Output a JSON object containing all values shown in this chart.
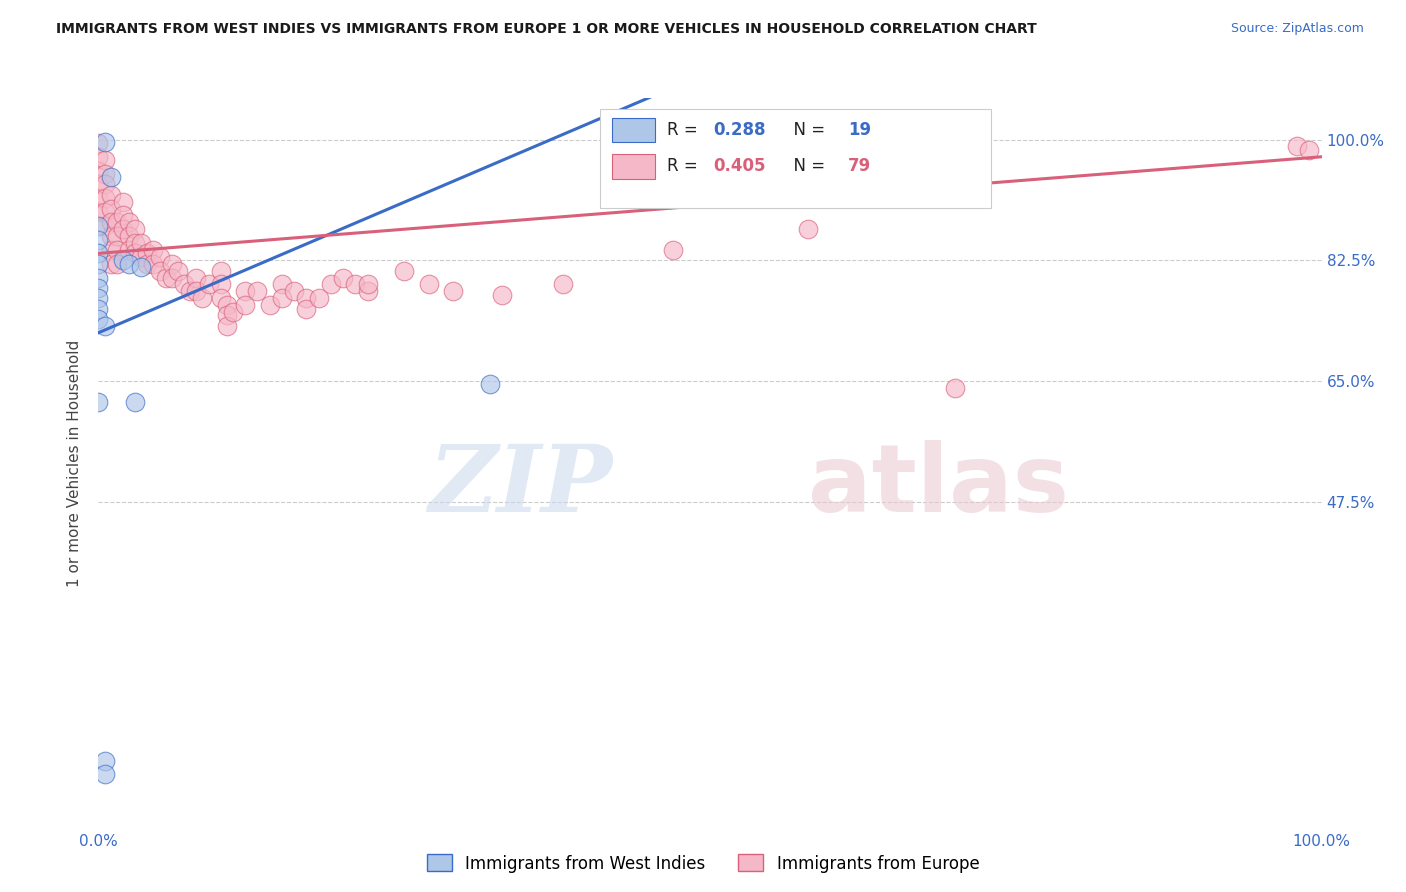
{
  "title": "IMMIGRANTS FROM WEST INDIES VS IMMIGRANTS FROM EUROPE 1 OR MORE VEHICLES IN HOUSEHOLD CORRELATION CHART",
  "source": "Source: ZipAtlas.com",
  "ylabel": "1 or more Vehicles in Household",
  "ytick_labels": [
    "100.0%",
    "82.5%",
    "65.0%",
    "47.5%"
  ],
  "ytick_values": [
    1.0,
    0.825,
    0.65,
    0.475
  ],
  "xrange": [
    0.0,
    1.0
  ],
  "yrange": [
    0.0,
    1.06
  ],
  "watermark_zip": "ZIP",
  "watermark_atlas": "atlas",
  "blue_color": "#aec6e8",
  "pink_color": "#f5b8c8",
  "blue_line_color": "#3a6bc7",
  "pink_line_color": "#d9607a",
  "blue_scatter": [
    [
      0.005,
      0.997
    ],
    [
      0.01,
      0.945
    ],
    [
      0.0,
      0.875
    ],
    [
      0.0,
      0.855
    ],
    [
      0.0,
      0.835
    ],
    [
      0.0,
      0.82
    ],
    [
      0.0,
      0.8
    ],
    [
      0.0,
      0.785
    ],
    [
      0.0,
      0.77
    ],
    [
      0.0,
      0.755
    ],
    [
      0.0,
      0.74
    ],
    [
      0.02,
      0.825
    ],
    [
      0.025,
      0.82
    ],
    [
      0.035,
      0.815
    ],
    [
      0.005,
      0.73
    ],
    [
      0.0,
      0.62
    ],
    [
      0.03,
      0.62
    ],
    [
      0.32,
      0.645
    ],
    [
      0.005,
      0.1
    ],
    [
      0.005,
      0.08
    ]
  ],
  "pink_scatter": [
    [
      0.0,
      0.995
    ],
    [
      0.0,
      0.975
    ],
    [
      0.0,
      0.955
    ],
    [
      0.0,
      0.935
    ],
    [
      0.0,
      0.915
    ],
    [
      0.0,
      0.895
    ],
    [
      0.005,
      0.97
    ],
    [
      0.005,
      0.95
    ],
    [
      0.005,
      0.935
    ],
    [
      0.005,
      0.915
    ],
    [
      0.005,
      0.895
    ],
    [
      0.005,
      0.875
    ],
    [
      0.01,
      0.92
    ],
    [
      0.01,
      0.9
    ],
    [
      0.01,
      0.88
    ],
    [
      0.01,
      0.86
    ],
    [
      0.01,
      0.84
    ],
    [
      0.01,
      0.82
    ],
    [
      0.015,
      0.88
    ],
    [
      0.015,
      0.86
    ],
    [
      0.015,
      0.84
    ],
    [
      0.015,
      0.82
    ],
    [
      0.02,
      0.91
    ],
    [
      0.02,
      0.89
    ],
    [
      0.02,
      0.87
    ],
    [
      0.025,
      0.88
    ],
    [
      0.025,
      0.86
    ],
    [
      0.025,
      0.84
    ],
    [
      0.03,
      0.87
    ],
    [
      0.03,
      0.85
    ],
    [
      0.03,
      0.835
    ],
    [
      0.035,
      0.85
    ],
    [
      0.035,
      0.83
    ],
    [
      0.04,
      0.835
    ],
    [
      0.04,
      0.82
    ],
    [
      0.045,
      0.84
    ],
    [
      0.045,
      0.82
    ],
    [
      0.05,
      0.83
    ],
    [
      0.05,
      0.81
    ],
    [
      0.055,
      0.8
    ],
    [
      0.06,
      0.82
    ],
    [
      0.06,
      0.8
    ],
    [
      0.065,
      0.81
    ],
    [
      0.07,
      0.79
    ],
    [
      0.075,
      0.78
    ],
    [
      0.08,
      0.8
    ],
    [
      0.08,
      0.78
    ],
    [
      0.085,
      0.77
    ],
    [
      0.09,
      0.79
    ],
    [
      0.1,
      0.81
    ],
    [
      0.1,
      0.79
    ],
    [
      0.1,
      0.77
    ],
    [
      0.105,
      0.76
    ],
    [
      0.105,
      0.745
    ],
    [
      0.105,
      0.73
    ],
    [
      0.11,
      0.75
    ],
    [
      0.12,
      0.78
    ],
    [
      0.12,
      0.76
    ],
    [
      0.13,
      0.78
    ],
    [
      0.14,
      0.76
    ],
    [
      0.15,
      0.79
    ],
    [
      0.15,
      0.77
    ],
    [
      0.16,
      0.78
    ],
    [
      0.17,
      0.77
    ],
    [
      0.17,
      0.755
    ],
    [
      0.18,
      0.77
    ],
    [
      0.19,
      0.79
    ],
    [
      0.2,
      0.8
    ],
    [
      0.21,
      0.79
    ],
    [
      0.22,
      0.78
    ],
    [
      0.22,
      0.79
    ],
    [
      0.25,
      0.81
    ],
    [
      0.27,
      0.79
    ],
    [
      0.29,
      0.78
    ],
    [
      0.33,
      0.775
    ],
    [
      0.38,
      0.79
    ],
    [
      0.47,
      0.84
    ],
    [
      0.58,
      0.87
    ],
    [
      0.62,
      0.985
    ],
    [
      0.7,
      0.64
    ],
    [
      0.98,
      0.99
    ],
    [
      0.99,
      0.985
    ]
  ]
}
